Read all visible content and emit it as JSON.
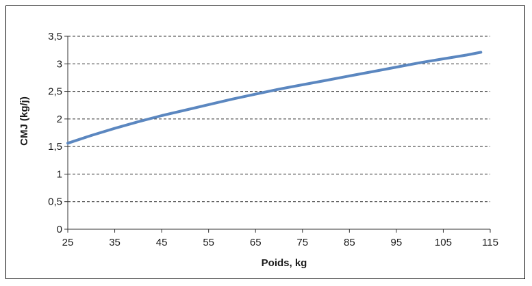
{
  "chart_data": {
    "type": "line",
    "xlabel": "Poids, kg",
    "ylabel": "CMJ (kg/j)",
    "xlim": [
      25,
      115
    ],
    "ylim": [
      0,
      3.5
    ],
    "x_ticks": [
      "25",
      "35",
      "45",
      "55",
      "65",
      "75",
      "85",
      "95",
      "105",
      "115"
    ],
    "y_ticks": [
      "0",
      "0,5",
      "1",
      "1,5",
      "2",
      "2,5",
      "3",
      "3,5"
    ],
    "grid": "horizontal-dashed",
    "series": [
      {
        "color": "#5b87c0",
        "x": [
          25,
          30,
          35,
          40,
          45,
          50,
          55,
          60,
          65,
          70,
          75,
          80,
          85,
          90,
          95,
          100,
          105,
          110,
          113
        ],
        "y": [
          1.56,
          1.7,
          1.83,
          1.95,
          2.06,
          2.16,
          2.26,
          2.36,
          2.45,
          2.54,
          2.62,
          2.7,
          2.78,
          2.86,
          2.94,
          3.02,
          3.09,
          3.16,
          3.21
        ]
      }
    ]
  }
}
